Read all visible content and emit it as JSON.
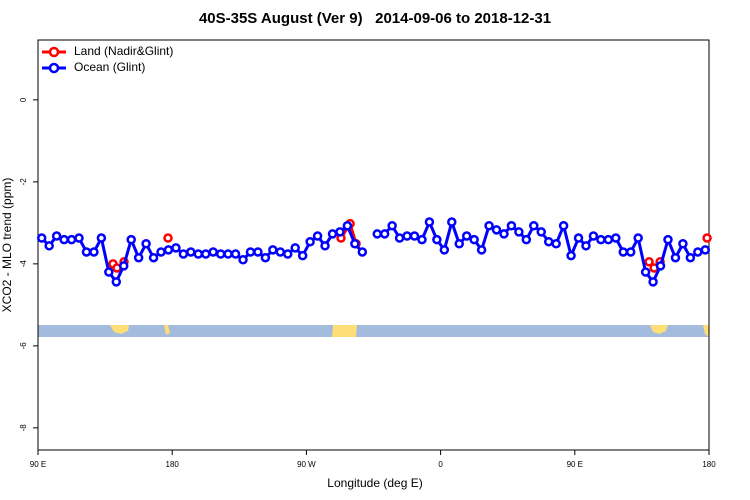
{
  "chart_data": {
    "type": "line",
    "title": "40S-35S August (Ver 9)   2014-09-06 to 2018-12-31",
    "x_label": "Longitude (deg E)",
    "y_label": "XCO2 - MLO trend (ppm)",
    "xlim": [
      90,
      540
    ],
    "xticks": [
      {
        "value": 90,
        "label": "90 E"
      },
      180,
      {
        "value": 270,
        "label": "90 W"
      },
      {
        "value": 360,
        "label": "0"
      },
      {
        "value": 450,
        "label": "90 E"
      },
      {
        "value": 540,
        "label": "180"
      }
    ],
    "ylim": [
      -8.54,
      1.46
    ],
    "yticks": [
      0,
      -2,
      -4,
      -6,
      -8
    ],
    "legend": "topleft",
    "series": [
      {
        "name": "Land (Nadir&Glint)",
        "color": "#ff0000",
        "x": [
          140.3,
          143.0,
          147.7,
          null,
          177.2,
          null,
          293.2,
          299.3,
          303.3,
          null,
          499.8,
          503.2,
          507.2,
          null,
          538.7
        ],
        "values": [
          -4.0,
          -4.1,
          -3.95,
          null,
          -3.37,
          null,
          -3.37,
          -3.02,
          -3.51,
          null,
          -3.95,
          -4.1,
          -3.95,
          null,
          -3.37
        ]
      },
      {
        "name": "Ocean (Glint)",
        "color": "#0000ff",
        "x": [
          92.5,
          97.5,
          102.5,
          107.5,
          112.5,
          117.5,
          122.5,
          127.5,
          132.5,
          137.5,
          142.5,
          147.5,
          152.5,
          157.5,
          162.5,
          167.5,
          172.5,
          177.5,
          182.5,
          187.5,
          192.5,
          197.5,
          202.5,
          207.5,
          212.5,
          217.5,
          222.5,
          227.5,
          232.5,
          237.5,
          242.5,
          247.5,
          252.5,
          257.5,
          262.5,
          267.5,
          272.5,
          277.5,
          282.5,
          287.5,
          292.5,
          297.5,
          302.5,
          307.5,
          312.5,
          317.5,
          322.5,
          327.5,
          332.5,
          337.5,
          342.5,
          347.5,
          352.5,
          357.5,
          362.5,
          367.5,
          372.5,
          377.5,
          382.5,
          387.5,
          392.5,
          397.5,
          402.5,
          407.5,
          412.5,
          417.5,
          422.5,
          427.5,
          432.5,
          437.5,
          442.5,
          447.5,
          452.5,
          457.5,
          462.5,
          467.5,
          472.5,
          477.5,
          482.5,
          487.5,
          492.5,
          497.5,
          502.5,
          507.5,
          512.5,
          517.5,
          522.5,
          527.5,
          532.5,
          537.5
        ],
        "values": [
          -3.37,
          -3.56,
          -3.32,
          -3.41,
          -3.41,
          -3.37,
          -3.71,
          -3.71,
          -3.37,
          -4.2,
          -4.44,
          -4.05,
          -3.41,
          -3.85,
          -3.51,
          -3.85,
          -3.71,
          -3.66,
          -3.61,
          -3.76,
          -3.71,
          -3.76,
          -3.76,
          -3.71,
          -3.76,
          -3.76,
          -3.76,
          -3.9,
          -3.71,
          -3.71,
          -3.85,
          -3.66,
          -3.71,
          -3.76,
          -3.61,
          -3.8,
          -3.46,
          -3.32,
          -3.56,
          -3.27,
          -3.22,
          -3.07,
          -3.51,
          -3.71,
          null,
          -3.27,
          -3.27,
          -3.07,
          -3.37,
          -3.32,
          -3.32,
          -3.41,
          -2.98,
          -3.41,
          -3.66,
          -2.98,
          -3.51,
          -3.32,
          -3.41,
          -3.66,
          -3.07,
          -3.17,
          -3.27,
          -3.07,
          -3.22,
          -3.41,
          -3.07,
          -3.22,
          -3.46,
          -3.51,
          -3.07,
          -3.8,
          -3.37,
          -3.56,
          -3.32,
          -3.41,
          -3.41,
          -3.37,
          -3.71,
          -3.71,
          -3.37,
          -4.2,
          -4.44,
          -4.05,
          -3.41,
          -3.85,
          -3.51,
          -3.85,
          -3.71,
          -3.66
        ]
      }
    ]
  }
}
